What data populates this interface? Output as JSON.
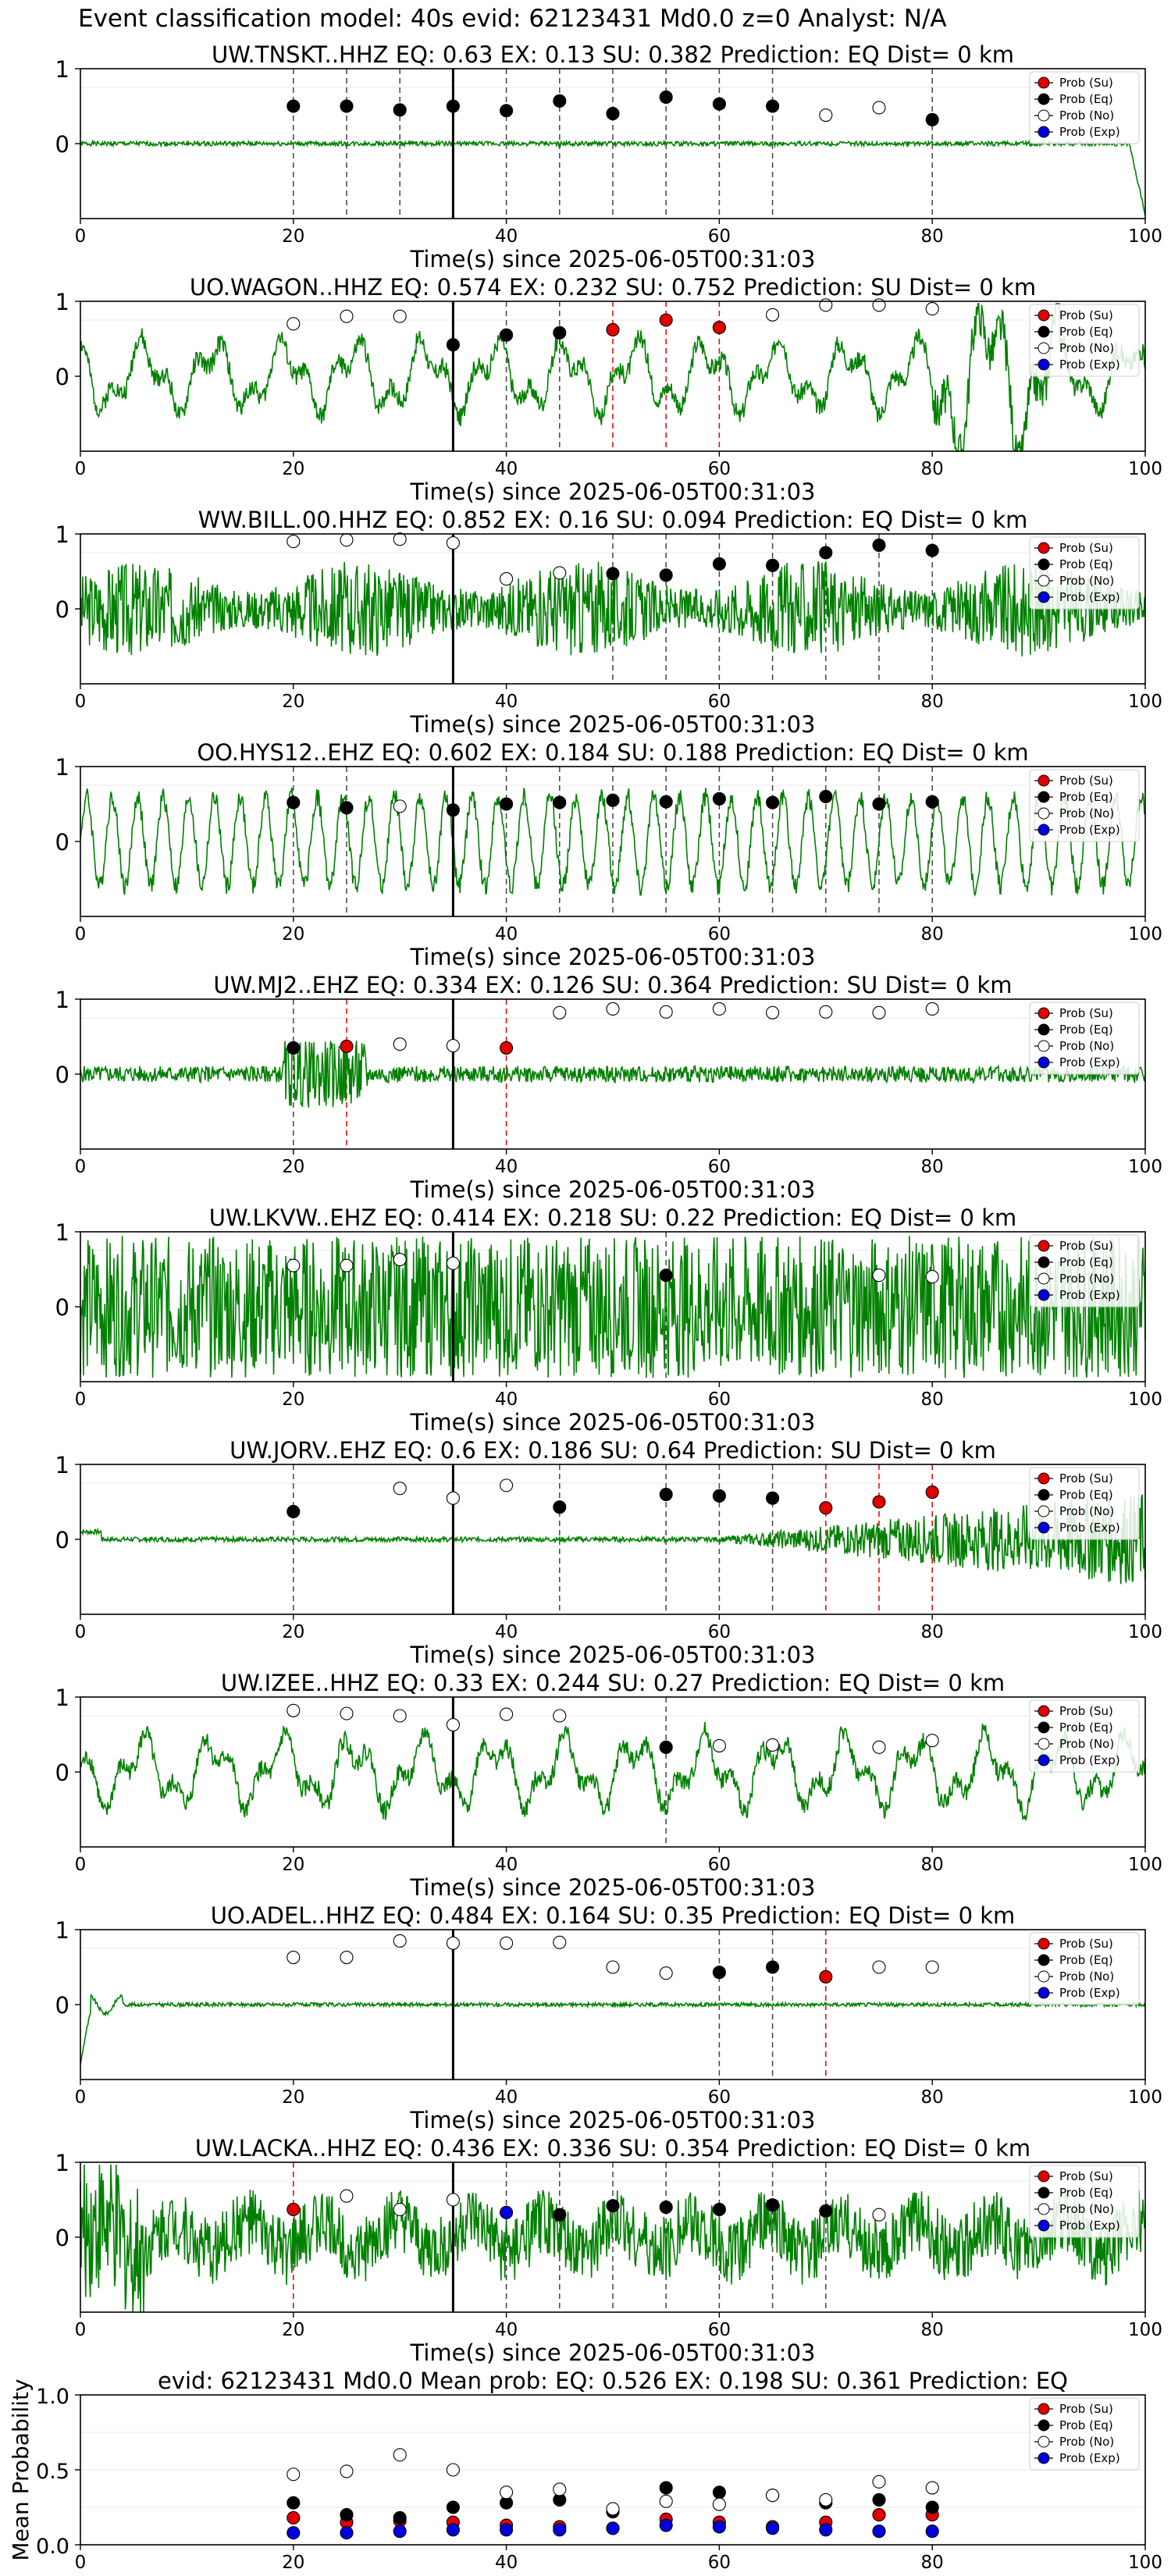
{
  "page_title": "Event classification model: 40s evid: 62123431 Md0.0 z=0 Analyst: N/A",
  "legend": [
    "Prob (Su)",
    "Prob (Eq)",
    "Prob (No)",
    "Prob (Exp)"
  ],
  "colors": {
    "waveform": "#008000",
    "su": "#e00000",
    "eq": "#000000",
    "no": "#ffffff",
    "exp": "#0000dd",
    "origin": "#000000"
  },
  "chart_data": [
    {
      "type": "scatter",
      "title": "UW.TNSKT..HHZ   EQ: 0.63  EX: 0.13  SU: 0.382   Prediction: EQ    Dist= 0 km",
      "xlabel": "Time(s) since 2025-06-05T00:31:03",
      "xlim": [
        0,
        100
      ],
      "ylim": [
        -1,
        1
      ],
      "xticks": [
        0,
        20,
        40,
        60,
        80,
        100
      ],
      "yticks": [
        0,
        1
      ],
      "wave": {
        "style": "flat",
        "amp": 0.05,
        "seed": 1,
        "tail_amp": 0.9
      },
      "origin_time": 35,
      "markers": [
        {
          "x": 20,
          "y": 0.5,
          "cls": "eq"
        },
        {
          "x": 25,
          "y": 0.5,
          "cls": "eq"
        },
        {
          "x": 30,
          "y": 0.45,
          "cls": "eq"
        },
        {
          "x": 35,
          "y": 0.5,
          "cls": "eq"
        },
        {
          "x": 40,
          "y": 0.44,
          "cls": "eq"
        },
        {
          "x": 45,
          "y": 0.57,
          "cls": "eq"
        },
        {
          "x": 50,
          "y": 0.4,
          "cls": "eq"
        },
        {
          "x": 55,
          "y": 0.62,
          "cls": "eq"
        },
        {
          "x": 60,
          "y": 0.53,
          "cls": "eq"
        },
        {
          "x": 65,
          "y": 0.5,
          "cls": "eq"
        },
        {
          "x": 70,
          "y": 0.38,
          "cls": "no"
        },
        {
          "x": 75,
          "y": 0.48,
          "cls": "no"
        },
        {
          "x": 80,
          "y": 0.32,
          "cls": "eq"
        }
      ]
    },
    {
      "type": "scatter",
      "title": "UO.WAGON..HHZ   EQ: 0.574  EX: 0.232  SU: 0.752   Prediction: SU    Dist= 0 km",
      "xlabel": "Time(s) since 2025-06-05T00:31:03",
      "xlim": [
        0,
        100
      ],
      "ylim": [
        -1,
        1
      ],
      "xticks": [
        0,
        20,
        40,
        60,
        80,
        100
      ],
      "yticks": [
        0,
        1
      ],
      "wave": {
        "style": "slow",
        "amp": 0.45,
        "seed": 2
      },
      "origin_time": 35,
      "markers": [
        {
          "x": 20,
          "y": 0.7,
          "cls": "no"
        },
        {
          "x": 25,
          "y": 0.8,
          "cls": "no"
        },
        {
          "x": 30,
          "y": 0.8,
          "cls": "no"
        },
        {
          "x": 35,
          "y": 0.42,
          "cls": "eq"
        },
        {
          "x": 40,
          "y": 0.55,
          "cls": "eq"
        },
        {
          "x": 45,
          "y": 0.58,
          "cls": "eq"
        },
        {
          "x": 50,
          "y": 0.62,
          "cls": "su"
        },
        {
          "x": 55,
          "y": 0.75,
          "cls": "su"
        },
        {
          "x": 60,
          "y": 0.65,
          "cls": "su"
        },
        {
          "x": 65,
          "y": 0.82,
          "cls": "no"
        },
        {
          "x": 70,
          "y": 0.95,
          "cls": "no"
        },
        {
          "x": 75,
          "y": 0.95,
          "cls": "no"
        },
        {
          "x": 80,
          "y": 0.9,
          "cls": "no"
        }
      ]
    },
    {
      "type": "scatter",
      "title": "WW.BILL.00.HHZ   EQ: 0.852  EX: 0.16  SU: 0.094   Prediction: EQ    Dist= 0 km",
      "xlabel": "Time(s) since 2025-06-05T00:31:03",
      "xlim": [
        0,
        100
      ],
      "ylim": [
        -1,
        1
      ],
      "xticks": [
        0,
        20,
        40,
        60,
        80,
        100
      ],
      "yticks": [
        0,
        1
      ],
      "wave": {
        "style": "noise",
        "amp": 0.5,
        "seed": 3
      },
      "origin_time": 35,
      "markers": [
        {
          "x": 20,
          "y": 0.9,
          "cls": "no"
        },
        {
          "x": 25,
          "y": 0.92,
          "cls": "no"
        },
        {
          "x": 30,
          "y": 0.93,
          "cls": "no"
        },
        {
          "x": 35,
          "y": 0.88,
          "cls": "no"
        },
        {
          "x": 40,
          "y": 0.4,
          "cls": "no"
        },
        {
          "x": 45,
          "y": 0.48,
          "cls": "no"
        },
        {
          "x": 50,
          "y": 0.47,
          "cls": "eq"
        },
        {
          "x": 55,
          "y": 0.45,
          "cls": "eq"
        },
        {
          "x": 60,
          "y": 0.6,
          "cls": "eq"
        },
        {
          "x": 65,
          "y": 0.58,
          "cls": "eq"
        },
        {
          "x": 70,
          "y": 0.75,
          "cls": "eq"
        },
        {
          "x": 75,
          "y": 0.85,
          "cls": "eq"
        },
        {
          "x": 80,
          "y": 0.78,
          "cls": "eq"
        }
      ]
    },
    {
      "type": "scatter",
      "title": "OO.HYS12..EHZ   EQ: 0.602  EX: 0.184  SU: 0.188   Prediction: EQ    Dist= 0 km",
      "xlabel": "Time(s) since 2025-06-05T00:31:03",
      "xlim": [
        0,
        100
      ],
      "ylim": [
        -1,
        1
      ],
      "xticks": [
        0,
        20,
        40,
        60,
        80,
        100
      ],
      "yticks": [
        0,
        1
      ],
      "wave": {
        "style": "osc",
        "amp": 0.6,
        "seed": 4
      },
      "origin_time": 35,
      "markers": [
        {
          "x": 20,
          "y": 0.52,
          "cls": "eq"
        },
        {
          "x": 25,
          "y": 0.45,
          "cls": "eq"
        },
        {
          "x": 30,
          "y": 0.47,
          "cls": "no"
        },
        {
          "x": 35,
          "y": 0.42,
          "cls": "eq"
        },
        {
          "x": 40,
          "y": 0.5,
          "cls": "eq"
        },
        {
          "x": 45,
          "y": 0.52,
          "cls": "eq"
        },
        {
          "x": 50,
          "y": 0.55,
          "cls": "eq"
        },
        {
          "x": 55,
          "y": 0.53,
          "cls": "eq"
        },
        {
          "x": 60,
          "y": 0.57,
          "cls": "eq"
        },
        {
          "x": 65,
          "y": 0.52,
          "cls": "eq"
        },
        {
          "x": 70,
          "y": 0.6,
          "cls": "eq"
        },
        {
          "x": 75,
          "y": 0.5,
          "cls": "eq"
        },
        {
          "x": 80,
          "y": 0.53,
          "cls": "eq"
        }
      ]
    },
    {
      "type": "scatter",
      "title": "UW.MJ2..EHZ   EQ: 0.334  EX: 0.126  SU: 0.364   Prediction: SU    Dist= 0 km",
      "xlabel": "Time(s) since 2025-06-05T00:31:03",
      "xlim": [
        0,
        100
      ],
      "ylim": [
        -1,
        1
      ],
      "xticks": [
        0,
        20,
        40,
        60,
        80,
        100
      ],
      "yticks": [
        0,
        1
      ],
      "wave": {
        "style": "burst",
        "amp": 0.15,
        "seed": 5
      },
      "origin_time": 35,
      "markers": [
        {
          "x": 20,
          "y": 0.35,
          "cls": "eq"
        },
        {
          "x": 25,
          "y": 0.37,
          "cls": "su"
        },
        {
          "x": 30,
          "y": 0.4,
          "cls": "no"
        },
        {
          "x": 35,
          "y": 0.38,
          "cls": "no"
        },
        {
          "x": 40,
          "y": 0.35,
          "cls": "su"
        },
        {
          "x": 45,
          "y": 0.82,
          "cls": "no"
        },
        {
          "x": 50,
          "y": 0.87,
          "cls": "no"
        },
        {
          "x": 55,
          "y": 0.83,
          "cls": "no"
        },
        {
          "x": 60,
          "y": 0.87,
          "cls": "no"
        },
        {
          "x": 65,
          "y": 0.82,
          "cls": "no"
        },
        {
          "x": 70,
          "y": 0.83,
          "cls": "no"
        },
        {
          "x": 75,
          "y": 0.82,
          "cls": "no"
        },
        {
          "x": 80,
          "y": 0.87,
          "cls": "no"
        }
      ]
    },
    {
      "type": "scatter",
      "title": "UW.LKVW..EHZ   EQ: 0.414  EX: 0.218  SU: 0.22   Prediction: EQ    Dist= 0 km",
      "xlabel": "Time(s) since 2025-06-05T00:31:03",
      "xlim": [
        0,
        100
      ],
      "ylim": [
        -1,
        1
      ],
      "xticks": [
        0,
        20,
        40,
        60,
        80,
        100
      ],
      "yticks": [
        0,
        1
      ],
      "wave": {
        "style": "dense",
        "amp": 0.9,
        "seed": 6
      },
      "origin_time": 35,
      "markers": [
        {
          "x": 20,
          "y": 0.55,
          "cls": "no"
        },
        {
          "x": 25,
          "y": 0.55,
          "cls": "no"
        },
        {
          "x": 30,
          "y": 0.63,
          "cls": "no"
        },
        {
          "x": 35,
          "y": 0.58,
          "cls": "no"
        },
        {
          "x": 55,
          "y": 0.42,
          "cls": "eq"
        },
        {
          "x": 75,
          "y": 0.42,
          "cls": "no"
        },
        {
          "x": 80,
          "y": 0.4,
          "cls": "no"
        }
      ]
    },
    {
      "type": "scatter",
      "title": "UW.JORV..EHZ   EQ: 0.6  EX: 0.186  SU: 0.64   Prediction: SU    Dist= 0 km",
      "xlabel": "Time(s) since 2025-06-05T00:31:03",
      "xlim": [
        0,
        100
      ],
      "ylim": [
        -1,
        1
      ],
      "xticks": [
        0,
        20,
        40,
        60,
        80,
        100
      ],
      "yticks": [
        0,
        1
      ],
      "wave": {
        "style": "growing",
        "amp": 0.9,
        "seed": 7
      },
      "origin_time": 35,
      "markers": [
        {
          "x": 20,
          "y": 0.37,
          "cls": "eq"
        },
        {
          "x": 30,
          "y": 0.68,
          "cls": "no"
        },
        {
          "x": 35,
          "y": 0.55,
          "cls": "no"
        },
        {
          "x": 40,
          "y": 0.72,
          "cls": "no"
        },
        {
          "x": 45,
          "y": 0.43,
          "cls": "eq"
        },
        {
          "x": 55,
          "y": 0.6,
          "cls": "eq"
        },
        {
          "x": 60,
          "y": 0.58,
          "cls": "eq"
        },
        {
          "x": 65,
          "y": 0.55,
          "cls": "eq"
        },
        {
          "x": 70,
          "y": 0.42,
          "cls": "su"
        },
        {
          "x": 75,
          "y": 0.5,
          "cls": "su"
        },
        {
          "x": 80,
          "y": 0.63,
          "cls": "su"
        }
      ]
    },
    {
      "type": "scatter",
      "title": "UW.IZEE..HHZ   EQ: 0.33  EX: 0.244  SU: 0.27   Prediction: EQ    Dist= 0 km",
      "xlabel": "Time(s) since 2025-06-05T00:31:03",
      "xlim": [
        0,
        100
      ],
      "ylim": [
        -1,
        1
      ],
      "xticks": [
        0,
        20,
        40,
        60,
        80,
        100
      ],
      "yticks": [
        0,
        1
      ],
      "wave": {
        "style": "slow",
        "amp": 0.4,
        "seed": 8
      },
      "origin_time": 35,
      "markers": [
        {
          "x": 20,
          "y": 0.82,
          "cls": "no"
        },
        {
          "x": 25,
          "y": 0.78,
          "cls": "no"
        },
        {
          "x": 30,
          "y": 0.75,
          "cls": "no"
        },
        {
          "x": 35,
          "y": 0.63,
          "cls": "no"
        },
        {
          "x": 40,
          "y": 0.77,
          "cls": "no"
        },
        {
          "x": 45,
          "y": 0.75,
          "cls": "no"
        },
        {
          "x": 55,
          "y": 0.33,
          "cls": "eq"
        },
        {
          "x": 60,
          "y": 0.35,
          "cls": "no"
        },
        {
          "x": 65,
          "y": 0.36,
          "cls": "no"
        },
        {
          "x": 75,
          "y": 0.33,
          "cls": "no"
        },
        {
          "x": 80,
          "y": 0.42,
          "cls": "no"
        }
      ]
    },
    {
      "type": "scatter",
      "title": "UO.ADEL..HHZ   EQ: 0.484  EX: 0.164  SU: 0.35   Prediction: EQ    Dist= 0 km",
      "xlabel": "Time(s) since 2025-06-05T00:31:03",
      "xlim": [
        0,
        100
      ],
      "ylim": [
        -1,
        1
      ],
      "xticks": [
        0,
        20,
        40,
        60,
        80,
        100
      ],
      "yticks": [
        0,
        1
      ],
      "wave": {
        "style": "flatstart",
        "amp": 0.04,
        "seed": 9
      },
      "origin_time": 35,
      "markers": [
        {
          "x": 20,
          "y": 0.63,
          "cls": "no"
        },
        {
          "x": 25,
          "y": 0.63,
          "cls": "no"
        },
        {
          "x": 30,
          "y": 0.85,
          "cls": "no"
        },
        {
          "x": 35,
          "y": 0.82,
          "cls": "no"
        },
        {
          "x": 40,
          "y": 0.82,
          "cls": "no"
        },
        {
          "x": 45,
          "y": 0.83,
          "cls": "no"
        },
        {
          "x": 50,
          "y": 0.5,
          "cls": "no"
        },
        {
          "x": 55,
          "y": 0.42,
          "cls": "no"
        },
        {
          "x": 60,
          "y": 0.43,
          "cls": "eq"
        },
        {
          "x": 65,
          "y": 0.5,
          "cls": "eq"
        },
        {
          "x": 70,
          "y": 0.37,
          "cls": "su"
        },
        {
          "x": 75,
          "y": 0.5,
          "cls": "no"
        },
        {
          "x": 80,
          "y": 0.5,
          "cls": "no"
        }
      ]
    },
    {
      "type": "scatter",
      "title": "UW.LACKA..HHZ   EQ: 0.436  EX: 0.336  SU: 0.354   Prediction: EQ    Dist= 0 km",
      "xlabel": "Time(s) since 2025-06-05T00:31:03",
      "xlim": [
        0,
        100
      ],
      "ylim": [
        -1,
        1
      ],
      "xticks": [
        0,
        20,
        40,
        60,
        80,
        100
      ],
      "yticks": [
        0,
        1
      ],
      "wave": {
        "style": "midnoise",
        "amp": 0.5,
        "seed": 10
      },
      "origin_time": 35,
      "markers": [
        {
          "x": 20,
          "y": 0.37,
          "cls": "su"
        },
        {
          "x": 25,
          "y": 0.55,
          "cls": "no"
        },
        {
          "x": 30,
          "y": 0.37,
          "cls": "no"
        },
        {
          "x": 35,
          "y": 0.5,
          "cls": "no"
        },
        {
          "x": 40,
          "y": 0.33,
          "cls": "exp"
        },
        {
          "x": 45,
          "y": 0.3,
          "cls": "eq"
        },
        {
          "x": 50,
          "y": 0.42,
          "cls": "eq"
        },
        {
          "x": 55,
          "y": 0.4,
          "cls": "eq"
        },
        {
          "x": 60,
          "y": 0.37,
          "cls": "eq"
        },
        {
          "x": 65,
          "y": 0.43,
          "cls": "eq"
        },
        {
          "x": 70,
          "y": 0.35,
          "cls": "eq"
        },
        {
          "x": 75,
          "y": 0.3,
          "cls": "no"
        }
      ]
    },
    {
      "type": "scatter",
      "title": "evid: 62123431  Md0.0   Mean prob:   EQ: 0.526  EX: 0.198  SU: 0.361   Prediction: EQ",
      "ylabel": "Mean Probability",
      "xlim": [
        0,
        100
      ],
      "ylim": [
        0,
        1
      ],
      "xticks": [
        0,
        20,
        40,
        60,
        80,
        100
      ],
      "yticks": [
        0.0,
        0.5,
        1.0
      ],
      "ytick_labels": [
        "0.0",
        "0.5",
        "1.0"
      ],
      "series": [
        {
          "name": "Prob (Su)",
          "cls": "su",
          "x": [
            20,
            25,
            30,
            35,
            40,
            45,
            50,
            55,
            60,
            65,
            70,
            75,
            80
          ],
          "y": [
            0.18,
            0.15,
            0.16,
            0.15,
            0.13,
            0.12,
            0.11,
            0.17,
            0.15,
            0.12,
            0.15,
            0.2,
            0.2
          ]
        },
        {
          "name": "Prob (Eq)",
          "cls": "eq",
          "x": [
            20,
            25,
            30,
            35,
            40,
            45,
            50,
            55,
            60,
            65,
            70,
            75,
            80
          ],
          "y": [
            0.28,
            0.2,
            0.18,
            0.25,
            0.28,
            0.3,
            0.22,
            0.38,
            0.35,
            0.33,
            0.28,
            0.3,
            0.25
          ]
        },
        {
          "name": "Prob (No)",
          "cls": "no",
          "x": [
            20,
            25,
            30,
            35,
            40,
            45,
            50,
            55,
            60,
            65,
            70,
            75,
            80
          ],
          "y": [
            0.47,
            0.49,
            0.6,
            0.5,
            0.35,
            0.37,
            0.24,
            0.29,
            0.27,
            0.33,
            0.3,
            0.42,
            0.38
          ]
        },
        {
          "name": "Prob (Exp)",
          "cls": "exp",
          "x": [
            20,
            25,
            30,
            35,
            40,
            45,
            50,
            55,
            60,
            65,
            70,
            75,
            80
          ],
          "y": [
            0.08,
            0.08,
            0.09,
            0.1,
            0.1,
            0.1,
            0.11,
            0.13,
            0.12,
            0.11,
            0.1,
            0.09,
            0.09
          ]
        }
      ]
    }
  ]
}
